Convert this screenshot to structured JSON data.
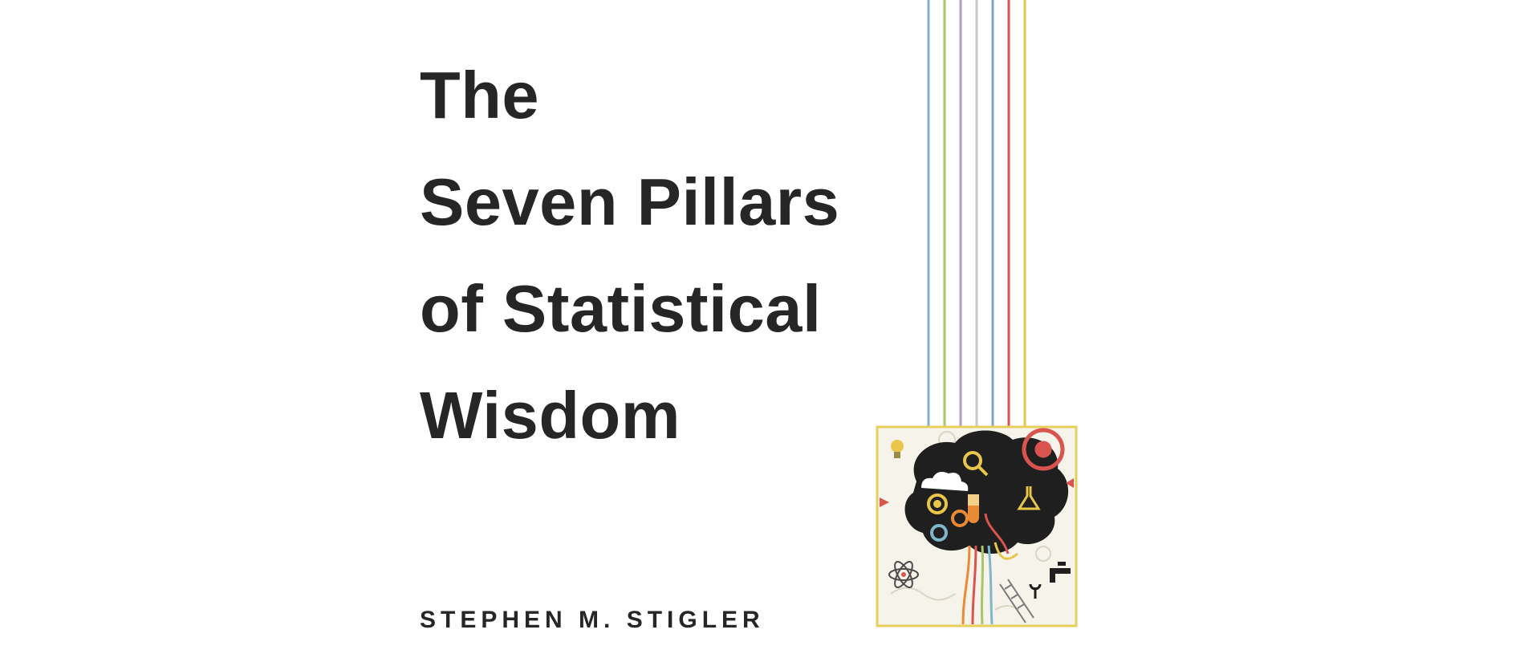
{
  "book": {
    "title_lines": [
      "The",
      "Seven Pillars",
      "of Statistical",
      "Wisdom"
    ],
    "author": "STEPHEN M. STIGLER"
  },
  "colors": {
    "text": "#262626",
    "background": "#ffffff",
    "frame": "#e6cf5a",
    "brain": "#1f1f1f",
    "strings": [
      "#7fb0cc",
      "#a9c46a",
      "#b69ac8",
      "#c9c9c9",
      "#7fa3d1",
      "#d9534f",
      "#e8c64a"
    ]
  },
  "illustration": {
    "name": "brain-with-gears-illustration",
    "icons": [
      "gear-icon",
      "magnifier-icon",
      "lightbulb-icon",
      "atom-icon",
      "faucet-icon",
      "ladder-icon",
      "flask-icon",
      "test-tube-icon",
      "wrench-icon"
    ]
  }
}
